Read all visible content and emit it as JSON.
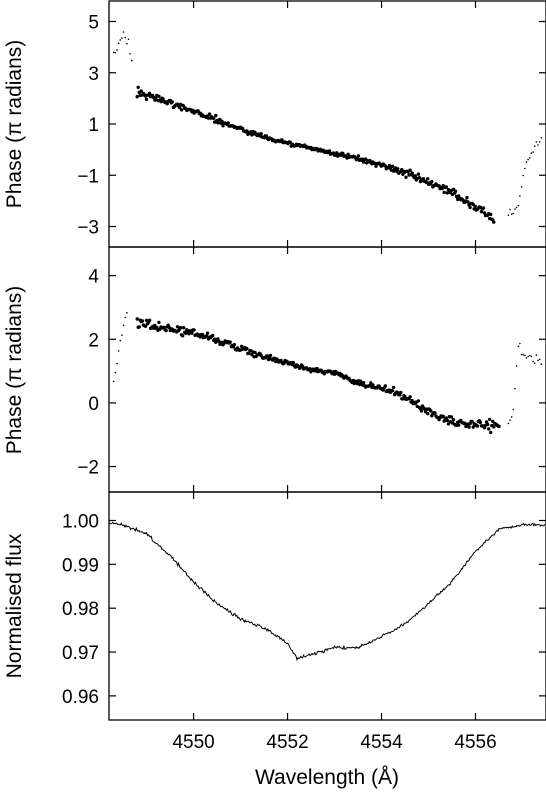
{
  "chart_data": [
    {
      "type": "scatter",
      "panel": "top",
      "ylabel": "Phase (π radians)",
      "xlim": [
        4548.2,
        4557.5
      ],
      "ylim": [
        -3.8,
        5.8
      ],
      "yticks": [
        5,
        3,
        1,
        -1,
        -3
      ],
      "ytick_labels": [
        "5",
        "3",
        "1",
        "−1",
        "−3"
      ],
      "series": [
        {
          "style": "small-dots",
          "x": [
            4548.3,
            4548.4,
            4548.5,
            4548.6,
            4548.7,
            4556.7,
            4556.8,
            4556.9,
            4557.0,
            4557.1,
            4557.2,
            4557.3,
            4557.4
          ],
          "y": [
            3.7,
            4.1,
            4.5,
            4.3,
            3.2,
            -2.6,
            -2.4,
            -2.2,
            -1.2,
            -0.4,
            -0.1,
            0.2,
            0.4
          ]
        },
        {
          "style": "large-dots",
          "x": [
            4548.8,
            4549.2,
            4549.6,
            4550.0,
            4550.5,
            4551.0,
            4551.5,
            4552.0,
            4552.5,
            4553.0,
            4553.5,
            4554.0,
            4554.5,
            4555.0,
            4555.5,
            4556.0,
            4556.4
          ],
          "y": [
            2.2,
            2.0,
            1.8,
            1.5,
            1.15,
            0.8,
            0.5,
            0.25,
            0.05,
            -0.15,
            -0.35,
            -0.6,
            -0.9,
            -1.3,
            -1.7,
            -2.2,
            -2.7
          ]
        }
      ]
    },
    {
      "type": "scatter",
      "panel": "middle",
      "ylabel": "Phase (π radians)",
      "xlim": [
        4548.2,
        4557.5
      ],
      "ylim": [
        -2.8,
        4.9
      ],
      "yticks": [
        4,
        2,
        0,
        -2
      ],
      "ytick_labels": [
        "4",
        "2",
        "0",
        "−2"
      ],
      "series": [
        {
          "style": "small-dots",
          "x": [
            4548.3,
            4548.4,
            4548.5,
            4548.6,
            4556.7,
            4556.8,
            4556.9,
            4557.0,
            4557.1,
            4557.2,
            4557.3,
            4557.4
          ],
          "y": [
            0.8,
            1.6,
            2.4,
            2.9,
            -0.7,
            -0.3,
            1.8,
            1.6,
            1.5,
            1.4,
            1.3,
            1.2
          ],
          "_": ""
        },
        {
          "style": "large-dots",
          "x": [
            4548.8,
            4549.2,
            4549.6,
            4550.0,
            4550.5,
            4551.0,
            4551.5,
            4552.0,
            4552.5,
            4553.0,
            4553.5,
            4554.0,
            4554.5,
            4555.0,
            4555.5,
            4556.0,
            4556.5
          ],
          "y": [
            2.5,
            2.4,
            2.3,
            2.2,
            2.0,
            1.7,
            1.45,
            1.25,
            1.05,
            0.95,
            0.65,
            0.45,
            0.2,
            -0.3,
            -0.55,
            -0.65,
            -0.75
          ]
        }
      ]
    },
    {
      "type": "line",
      "panel": "bottom",
      "xlabel": "Wavelength (Å)",
      "ylabel": "Normalised flux",
      "xlim": [
        4548.2,
        4557.5
      ],
      "ylim": [
        0.9545,
        1.0065
      ],
      "xticks": [
        4550,
        4552,
        4554,
        4556
      ],
      "xtick_labels": [
        "4550",
        "4552",
        "4554",
        "4556"
      ],
      "yticks": [
        1.0,
        0.99,
        0.98,
        0.97,
        0.96
      ],
      "ytick_labels": [
        "1.00",
        "0.99",
        "0.98",
        "0.97",
        "0.96"
      ],
      "x": [
        4548.2,
        4548.5,
        4549.0,
        4549.5,
        4550.0,
        4550.5,
        4551.0,
        4551.5,
        4552.0,
        4552.2,
        4552.5,
        4553.0,
        4553.5,
        4554.0,
        4554.5,
        4555.0,
        4555.5,
        4556.0,
        4556.5,
        4557.0,
        4557.5
      ],
      "y": [
        0.9995,
        0.999,
        0.997,
        0.992,
        0.986,
        0.981,
        0.9775,
        0.9755,
        0.972,
        0.9685,
        0.9695,
        0.971,
        0.971,
        0.9735,
        0.9765,
        0.981,
        0.986,
        0.993,
        0.998,
        0.999,
        0.999
      ]
    }
  ]
}
